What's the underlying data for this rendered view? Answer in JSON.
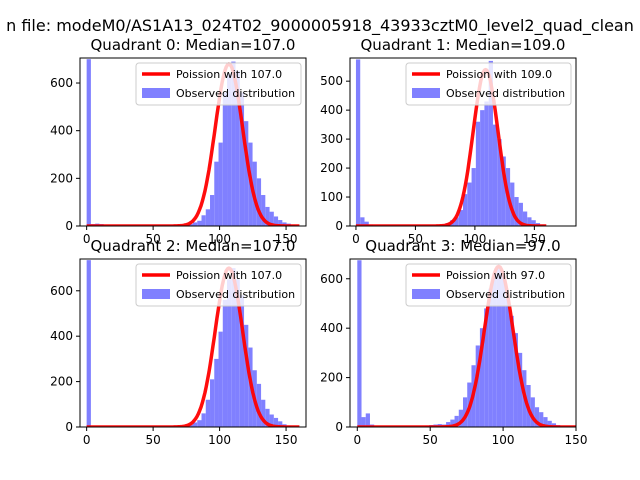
{
  "figure_title": "n file: modeM0/AS1A13_024T02_9000005918_43933cztM0_level2_quad_clean",
  "colors": {
    "observed_bar": "#8080ff",
    "poisson_line": "#ff0000",
    "axis": "#000000"
  },
  "chart_data": [
    {
      "type": "bar",
      "title": "Quadrant 0: Median=107.0",
      "xlim": [
        -5,
        165
      ],
      "ylim": [
        0,
        705
      ],
      "xticks": [
        0,
        50,
        100,
        150
      ],
      "yticks": [
        0,
        200,
        400,
        600
      ],
      "legend_position": "top-right",
      "series": [
        {
          "name": "Poission with 107.0",
          "kind": "line",
          "median": 107.0,
          "peak": 680,
          "sigma": 10.3
        },
        {
          "name": "Observed distribution",
          "kind": "hist",
          "bin_width": 3.2,
          "bins": [
            [
              0,
              700
            ],
            [
              3.2,
              8
            ],
            [
              6.4,
              10
            ],
            [
              9.6,
              8
            ],
            [
              76.8,
              8
            ],
            [
              80,
              15
            ],
            [
              83.2,
              22
            ],
            [
              86.4,
              45
            ],
            [
              89.6,
              70
            ],
            [
              92.8,
              130
            ],
            [
              96,
              270
            ],
            [
              99.2,
              350
            ],
            [
              102.4,
              560
            ],
            [
              105.6,
              640
            ],
            [
              108.8,
              690
            ],
            [
              112,
              650
            ],
            [
              115.2,
              560
            ],
            [
              118.4,
              440
            ],
            [
              121.6,
              350
            ],
            [
              124.8,
              270
            ],
            [
              128,
              200
            ],
            [
              131.2,
              130
            ],
            [
              134.4,
              80
            ],
            [
              137.6,
              60
            ],
            [
              140.8,
              40
            ],
            [
              144,
              25
            ],
            [
              147.2,
              15
            ],
            [
              150.4,
              10
            ],
            [
              153.6,
              5
            ]
          ]
        }
      ]
    },
    {
      "type": "bar",
      "title": "Quadrant 1: Median=109.0",
      "xlim": [
        -5,
        185
      ],
      "ylim": [
        0,
        580
      ],
      "xticks": [
        0,
        50,
        100,
        150
      ],
      "yticks": [
        0,
        100,
        200,
        300,
        400,
        500
      ],
      "legend_position": "top-right",
      "series": [
        {
          "name": "Poission with 109.0",
          "kind": "line",
          "median": 109.0,
          "peak": 540,
          "sigma": 10.4
        },
        {
          "name": "Observed distribution",
          "kind": "hist",
          "bin_width": 3.6,
          "bins": [
            [
              0,
              575
            ],
            [
              3.6,
              30
            ],
            [
              7.2,
              15
            ],
            [
              10.8,
              5
            ],
            [
              72,
              5
            ],
            [
              75.6,
              10
            ],
            [
              79.2,
              20
            ],
            [
              82.8,
              30
            ],
            [
              86.4,
              55
            ],
            [
              90,
              110
            ],
            [
              93.6,
              150
            ],
            [
              97.2,
              200
            ],
            [
              100.8,
              360
            ],
            [
              104.4,
              400
            ],
            [
              108,
              430
            ],
            [
              111.6,
              570
            ],
            [
              115.2,
              350
            ],
            [
              118.8,
              300
            ],
            [
              122.4,
              240
            ],
            [
              126,
              200
            ],
            [
              129.6,
              150
            ],
            [
              133.2,
              100
            ],
            [
              136.8,
              80
            ],
            [
              140.4,
              50
            ],
            [
              144,
              30
            ],
            [
              147.6,
              20
            ],
            [
              151.2,
              10
            ],
            [
              154.8,
              5
            ]
          ]
        }
      ]
    },
    {
      "type": "bar",
      "title": "Quadrant 2: Median=107.0",
      "xlim": [
        -5,
        165
      ],
      "ylim": [
        0,
        740
      ],
      "xticks": [
        0,
        50,
        100,
        150
      ],
      "yticks": [
        0,
        200,
        400,
        600
      ],
      "legend_position": "top-right",
      "series": [
        {
          "name": "Poission with 107.0",
          "kind": "line",
          "median": 107.0,
          "peak": 700,
          "sigma": 10.3
        },
        {
          "name": "Observed distribution",
          "kind": "hist",
          "bin_width": 3.2,
          "bins": [
            [
              0,
              735
            ],
            [
              73.6,
              5
            ],
            [
              76.8,
              10
            ],
            [
              80,
              20
            ],
            [
              83.2,
              30
            ],
            [
              86.4,
              60
            ],
            [
              89.6,
              120
            ],
            [
              92.8,
              210
            ],
            [
              96,
              300
            ],
            [
              99.2,
              420
            ],
            [
              102.4,
              560
            ],
            [
              105.6,
              650
            ],
            [
              108.8,
              700
            ],
            [
              112,
              650
            ],
            [
              115.2,
              580
            ],
            [
              118.4,
              450
            ],
            [
              121.6,
              350
            ],
            [
              124.8,
              250
            ],
            [
              128,
              190
            ],
            [
              131.2,
              120
            ],
            [
              134.4,
              80
            ],
            [
              137.6,
              55
            ],
            [
              140.8,
              40
            ],
            [
              144,
              25
            ],
            [
              147.2,
              12
            ],
            [
              150.4,
              6
            ]
          ]
        }
      ]
    },
    {
      "type": "bar",
      "title": "Quadrant 3: Median=97.0",
      "xlim": [
        -5,
        150
      ],
      "ylim": [
        0,
        680
      ],
      "xticks": [
        0,
        50,
        100,
        150
      ],
      "yticks": [
        0,
        200,
        400,
        600
      ],
      "legend_position": "top-right",
      "series": [
        {
          "name": "Poission with 97.0",
          "kind": "line",
          "median": 97.0,
          "peak": 650,
          "sigma": 9.8
        },
        {
          "name": "Observed distribution",
          "kind": "hist",
          "bin_width": 2.9,
          "bins": [
            [
              0,
              675
            ],
            [
              2.9,
              40
            ],
            [
              5.8,
              55
            ],
            [
              8.7,
              10
            ],
            [
              46.4,
              5
            ],
            [
              49.3,
              8
            ],
            [
              52.2,
              10
            ],
            [
              55.1,
              12
            ],
            [
              58,
              10
            ],
            [
              60.9,
              20
            ],
            [
              63.8,
              30
            ],
            [
              66.7,
              45
            ],
            [
              69.6,
              70
            ],
            [
              72.5,
              120
            ],
            [
              75.4,
              180
            ],
            [
              78.3,
              250
            ],
            [
              81.2,
              330
            ],
            [
              84.1,
              400
            ],
            [
              87,
              480
            ],
            [
              89.9,
              560
            ],
            [
              92.8,
              620
            ],
            [
              95.7,
              650
            ],
            [
              98.6,
              620
            ],
            [
              101.5,
              520
            ],
            [
              104.4,
              450
            ],
            [
              107.3,
              380
            ],
            [
              110.2,
              300
            ],
            [
              113.1,
              230
            ],
            [
              116,
              170
            ],
            [
              118.9,
              120
            ],
            [
              121.8,
              80
            ],
            [
              124.7,
              60
            ],
            [
              127.6,
              40
            ],
            [
              130.5,
              25
            ],
            [
              133.4,
              15
            ],
            [
              136.3,
              8
            ]
          ]
        }
      ]
    }
  ]
}
